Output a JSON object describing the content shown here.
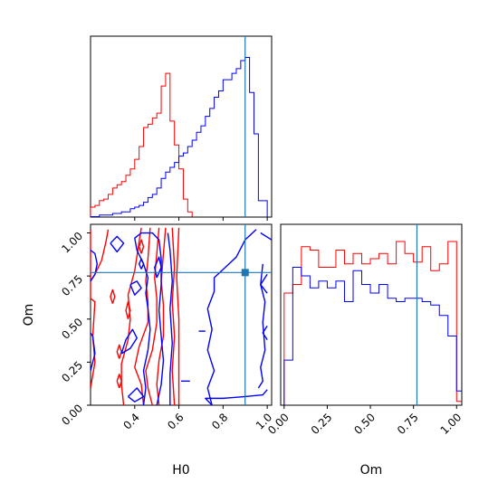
{
  "colors": {
    "series_red": "#ff0000",
    "series_blue": "#0000ff",
    "truth": "#1f77b4",
    "axes": "#000000",
    "background": "#ffffff"
  },
  "labels": {
    "x_h0": "H0",
    "x_om": "Om",
    "y_om": "Om"
  },
  "chart_data": [
    {
      "type": "step-histogram",
      "panel": "H0 marginal",
      "grid": false,
      "xlim": [
        0.2,
        1.02
      ],
      "truth_x": 0.9,
      "x_ticks": [],
      "y_ticks": [],
      "series": [
        {
          "color": "#ff0000",
          "bin_start": 0.2,
          "bin_width": 0.02,
          "values": [
            0.06,
            0.07,
            0.1,
            0.11,
            0.14,
            0.18,
            0.2,
            0.22,
            0.26,
            0.3,
            0.36,
            0.44,
            0.56,
            0.58,
            0.62,
            0.65,
            0.82,
            0.9,
            0.6,
            0.45,
            0.3,
            0.11,
            0.03
          ]
        },
        {
          "color": "#0000ff",
          "bin_start": 0.2,
          "bin_width": 0.02,
          "values": [
            0,
            0,
            0.01,
            0.01,
            0.01,
            0.02,
            0.02,
            0.03,
            0.03,
            0.05,
            0.06,
            0.07,
            0.09,
            0.12,
            0.14,
            0.18,
            0.24,
            0.28,
            0.31,
            0.34,
            0.38,
            0.4,
            0.44,
            0.48,
            0.53,
            0.57,
            0.63,
            0.68,
            0.75,
            0.79,
            0.86,
            0.86,
            0.9,
            0.93,
            0.98,
            1.0,
            0.78,
            0.52,
            0.1,
            0.1
          ]
        }
      ]
    },
    {
      "type": "contour",
      "panel": "H0 vs Om",
      "grid": false,
      "xlim": [
        0.2,
        1.02
      ],
      "ylim": [
        0.0,
        1.05
      ],
      "x_ticks": [
        "0.4",
        "0.6",
        "0.8",
        "1.0"
      ],
      "y_ticks": [
        "0.00",
        "0.25",
        "0.50",
        "0.75",
        "1.00"
      ],
      "xlabel": "H0",
      "ylabel": "Om",
      "truth": {
        "x": 0.9,
        "y": 0.77
      },
      "series": [
        {
          "color": "#ff0000",
          "contours": [
            [
              [
                0.2,
                1.02
              ],
              [
                0.2,
                0.62
              ],
              [
                0.22,
                0.6
              ],
              [
                0.21,
                0.4
              ],
              [
                0.22,
                0.25
              ],
              [
                0.2,
                0.1
              ]
            ],
            [
              [
                0.2,
                0.72
              ],
              [
                0.22,
                0.76
              ],
              [
                0.25,
                0.84
              ],
              [
                0.27,
                0.95
              ],
              [
                0.28,
                1.02
              ]
            ],
            [
              [
                0.35,
                0.0
              ],
              [
                0.34,
                0.12
              ],
              [
                0.34,
                0.24
              ],
              [
                0.37,
                0.38
              ],
              [
                0.38,
                0.5
              ],
              [
                0.37,
                0.64
              ],
              [
                0.4,
                0.78
              ],
              [
                0.42,
                0.95
              ],
              [
                0.43,
                1.03
              ]
            ],
            [
              [
                0.44,
                0.0
              ],
              [
                0.43,
                0.12
              ],
              [
                0.4,
                0.22
              ],
              [
                0.42,
                0.34
              ],
              [
                0.46,
                0.48
              ],
              [
                0.46,
                0.6
              ],
              [
                0.45,
                0.72
              ],
              [
                0.46,
                0.85
              ],
              [
                0.47,
                1.03
              ]
            ],
            [
              [
                0.48,
                0.0
              ],
              [
                0.46,
                0.1
              ],
              [
                0.45,
                0.2
              ],
              [
                0.48,
                0.32
              ],
              [
                0.5,
                0.48
              ],
              [
                0.5,
                0.62
              ],
              [
                0.49,
                0.74
              ],
              [
                0.5,
                0.88
              ],
              [
                0.51,
                1.03
              ]
            ],
            [
              [
                0.51,
                0.0
              ],
              [
                0.5,
                0.12
              ],
              [
                0.51,
                0.26
              ],
              [
                0.53,
                0.4
              ],
              [
                0.53,
                0.58
              ],
              [
                0.52,
                0.72
              ],
              [
                0.53,
                0.88
              ],
              [
                0.54,
                1.03
              ]
            ],
            [
              [
                0.58,
                0.0
              ],
              [
                0.57,
                0.2
              ],
              [
                0.58,
                0.4
              ],
              [
                0.57,
                0.6
              ],
              [
                0.58,
                0.8
              ],
              [
                0.57,
                1.03
              ]
            ],
            [
              [
                0.6,
                0.0
              ],
              [
                0.6,
                0.22
              ],
              [
                0.6,
                0.5
              ],
              [
                0.59,
                0.74
              ],
              [
                0.6,
                1.03
              ]
            ],
            [
              [
                0.3,
                0.59
              ],
              [
                0.31,
                0.63
              ],
              [
                0.3,
                0.67
              ],
              [
                0.29,
                0.63
              ],
              [
                0.3,
                0.59
              ]
            ],
            [
              [
                0.37,
                0.5
              ],
              [
                0.38,
                0.55
              ],
              [
                0.37,
                0.6
              ],
              [
                0.36,
                0.55
              ],
              [
                0.37,
                0.5
              ]
            ],
            [
              [
                0.33,
                0.27
              ],
              [
                0.34,
                0.31
              ],
              [
                0.33,
                0.35
              ],
              [
                0.32,
                0.31
              ],
              [
                0.33,
                0.27
              ]
            ],
            [
              [
                0.33,
                0.1
              ],
              [
                0.34,
                0.14
              ],
              [
                0.33,
                0.18
              ],
              [
                0.32,
                0.14
              ],
              [
                0.33,
                0.1
              ]
            ],
            [
              [
                0.43,
                0.88
              ],
              [
                0.44,
                0.92
              ],
              [
                0.43,
                0.96
              ],
              [
                0.42,
                0.92
              ],
              [
                0.43,
                0.88
              ]
            ]
          ]
        },
        {
          "color": "#0000ff",
          "contours": [
            [
              [
                0.2,
                0.72
              ],
              [
                0.22,
                0.76
              ],
              [
                0.23,
                0.82
              ],
              [
                0.22,
                0.88
              ],
              [
                0.2,
                0.9
              ]
            ],
            [
              [
                0.2,
                0.2
              ],
              [
                0.22,
                0.3
              ],
              [
                0.21,
                0.4
              ],
              [
                0.2,
                0.42
              ]
            ],
            [
              [
                0.29,
                0.94
              ],
              [
                0.32,
                0.98
              ],
              [
                0.35,
                0.94
              ],
              [
                0.32,
                0.89
              ],
              [
                0.29,
                0.94
              ]
            ],
            [
              [
                0.34,
                0.3
              ],
              [
                0.38,
                0.33
              ],
              [
                0.41,
                0.39
              ],
              [
                0.39,
                0.44
              ],
              [
                0.36,
                0.38
              ],
              [
                0.34,
                0.3
              ]
            ],
            [
              [
                0.38,
                0.7
              ],
              [
                0.41,
                0.72
              ],
              [
                0.43,
                0.68
              ],
              [
                0.4,
                0.64
              ],
              [
                0.38,
                0.7
              ]
            ],
            [
              [
                0.37,
                0.05
              ],
              [
                0.4,
                0.02
              ],
              [
                0.44,
                0.05
              ],
              [
                0.41,
                0.1
              ],
              [
                0.37,
                0.05
              ]
            ],
            [
              [
                0.44,
                0.0
              ],
              [
                0.45,
                0.1
              ],
              [
                0.44,
                0.2
              ],
              [
                0.46,
                0.32
              ],
              [
                0.47,
                0.44
              ],
              [
                0.46,
                0.56
              ],
              [
                0.45,
                0.65
              ],
              [
                0.46,
                0.74
              ],
              [
                0.44,
                0.82
              ],
              [
                0.41,
                0.9
              ],
              [
                0.4,
                0.97
              ],
              [
                0.43,
                1.0
              ],
              [
                0.48,
                1.0
              ],
              [
                0.51,
                0.96
              ],
              [
                0.52,
                0.85
              ],
              [
                0.52,
                0.7
              ],
              [
                0.51,
                0.55
              ],
              [
                0.52,
                0.4
              ],
              [
                0.53,
                0.26
              ],
              [
                0.52,
                0.12
              ],
              [
                0.5,
                0.0
              ]
            ],
            [
              [
                0.56,
                0.0
              ],
              [
                0.56,
                0.18
              ],
              [
                0.57,
                0.36
              ],
              [
                0.56,
                0.56
              ],
              [
                0.57,
                0.72
              ],
              [
                0.56,
                0.9
              ],
              [
                0.55,
                1.0
              ]
            ],
            [
              [
                0.5,
                0.74
              ],
              [
                0.52,
                0.8
              ],
              [
                0.51,
                0.86
              ],
              [
                0.49,
                0.8
              ],
              [
                0.5,
                0.74
              ]
            ],
            [
              [
                0.43,
                0.79
              ],
              [
                0.44,
                0.82
              ],
              [
                0.43,
                0.85
              ],
              [
                0.42,
                0.82
              ],
              [
                0.43,
                0.79
              ]
            ],
            [
              [
                0.61,
                0.14
              ],
              [
                0.65,
                0.14
              ]
            ],
            [
              [
                0.69,
                0.43
              ],
              [
                0.72,
                0.43
              ]
            ],
            [
              [
                0.75,
                0.0
              ],
              [
                0.73,
                0.1
              ],
              [
                0.76,
                0.2
              ],
              [
                0.73,
                0.32
              ],
              [
                0.75,
                0.44
              ],
              [
                0.73,
                0.56
              ],
              [
                0.76,
                0.66
              ],
              [
                0.76,
                0.74
              ],
              [
                0.86,
                0.86
              ],
              [
                0.9,
                0.96
              ],
              [
                0.95,
                1.02
              ]
            ],
            [
              [
                0.97,
                1.0
              ],
              [
                1.02,
                0.96
              ]
            ],
            [
              [
                1.0,
                0.65
              ],
              [
                0.97,
                0.7
              ],
              [
                1.0,
                0.76
              ]
            ],
            [
              [
                1.0,
                0.38
              ],
              [
                0.98,
                0.42
              ],
              [
                1.0,
                0.46
              ]
            ],
            [
              [
                0.75,
                0.0
              ],
              [
                0.72,
                0.04
              ],
              [
                0.8,
                0.04
              ],
              [
                0.9,
                0.05
              ],
              [
                0.98,
                0.06
              ],
              [
                1.0,
                0.09
              ]
            ],
            [
              [
                0.96,
                0.1
              ],
              [
                0.98,
                0.14
              ],
              [
                0.97,
                0.22
              ],
              [
                0.99,
                0.32
              ],
              [
                0.98,
                0.48
              ],
              [
                0.99,
                0.6
              ],
              [
                0.97,
                0.7
              ],
              [
                0.98,
                0.82
              ]
            ]
          ]
        }
      ]
    },
    {
      "type": "step-histogram",
      "panel": "Om marginal",
      "grid": false,
      "xlim": [
        -0.02,
        1.03
      ],
      "truth_x": 0.77,
      "x_ticks": [
        "0.00",
        "0.25",
        "0.50",
        "0.75",
        "1.00"
      ],
      "y_ticks": [],
      "xlabel": "Om",
      "series": [
        {
          "color": "#ff0000",
          "bin_start": 0.0,
          "bin_width": 0.05,
          "values": [
            0.65,
            0.7,
            0.92,
            0.9,
            0.8,
            0.8,
            0.9,
            0.82,
            0.88,
            0.82,
            0.85,
            0.88,
            0.82,
            0.95,
            0.88,
            0.83,
            0.92,
            0.78,
            0.82,
            0.95,
            0.02
          ]
        },
        {
          "color": "#0000ff",
          "bin_start": 0.0,
          "bin_width": 0.05,
          "values": [
            0.26,
            0.8,
            0.75,
            0.68,
            0.72,
            0.68,
            0.72,
            0.6,
            0.78,
            0.7,
            0.65,
            0.7,
            0.62,
            0.6,
            0.62,
            0.62,
            0.6,
            0.58,
            0.52,
            0.4,
            0.08
          ]
        }
      ]
    }
  ]
}
